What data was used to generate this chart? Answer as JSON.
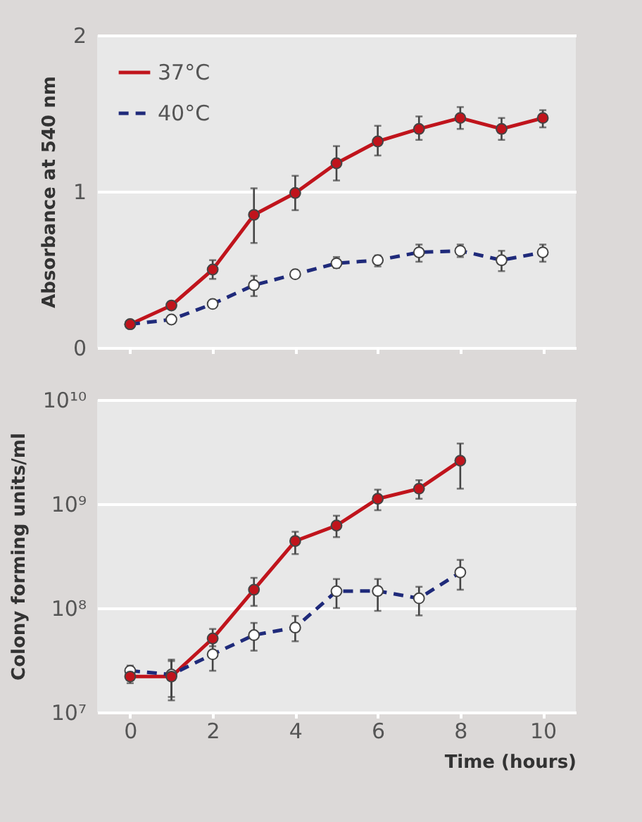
{
  "chart_data": [
    {
      "type": "line",
      "ylabel": "Absorbance at 540 nm",
      "x": [
        0,
        1,
        2,
        3,
        4,
        5,
        6,
        7,
        8,
        9,
        10
      ],
      "xlim": [
        -0.8,
        10.8
      ],
      "xticks": [
        0,
        2,
        4,
        6,
        8,
        10
      ],
      "ylim": [
        0,
        2
      ],
      "yticks": [
        0,
        1,
        2
      ],
      "tick_labels": "y",
      "grid": "y",
      "legend": "top left",
      "marker": "circle",
      "series": [
        {
          "name": "37°C",
          "color": "#c0141c",
          "line_style": "solid",
          "values": [
            0.15,
            0.27,
            0.5,
            0.85,
            0.99,
            1.18,
            1.32,
            1.4,
            1.47,
            1.4,
            1.47
          ],
          "errors": [
            null,
            0.02,
            [
              0.44,
              0.56
            ],
            [
              0.67,
              1.02
            ],
            [
              0.88,
              1.1
            ],
            [
              1.07,
              1.29
            ],
            [
              1.23,
              1.42
            ],
            [
              1.33,
              1.48
            ],
            [
              1.4,
              1.54
            ],
            [
              1.33,
              1.47
            ],
            [
              1.41,
              1.52
            ]
          ]
        },
        {
          "name": "40°C",
          "color": "#1f2a7a",
          "line_style": "dashed",
          "values": [
            0.15,
            0.18,
            0.28,
            0.4,
            0.47,
            0.54,
            0.56,
            0.61,
            0.62,
            0.56,
            0.61
          ],
          "errors": [
            null,
            null,
            null,
            [
              0.33,
              0.46
            ],
            0.02,
            [
              0.51,
              0.58
            ],
            [
              0.52,
              0.59
            ],
            [
              0.55,
              0.66
            ],
            [
              0.58,
              0.66
            ],
            [
              0.49,
              0.62
            ],
            [
              0.55,
              0.66
            ]
          ]
        }
      ]
    },
    {
      "type": "line",
      "ylabel": "Colony forming units/ml",
      "xlabel": "Time (hours)",
      "x": [
        0,
        1,
        2,
        3,
        4,
        5,
        6,
        7,
        8
      ],
      "xlim": [
        -0.8,
        10.8
      ],
      "xticks": [
        0,
        2,
        4,
        6,
        8,
        10
      ],
      "ylim": [
        10000000,
        10000000000
      ],
      "yticks": [
        {
          "value": 10000000,
          "label": "10⁷"
        },
        {
          "value": 100000000,
          "label": "10⁸"
        },
        {
          "value": 1000000000,
          "label": "10⁹"
        },
        {
          "value": 10000000000,
          "label": "10¹⁰"
        }
      ],
      "log": "y",
      "grid": "y",
      "marker": "circle",
      "series": [
        {
          "color": "#c0141c",
          "line_style": "solid",
          "values": [
            22000000,
            22000000,
            51000000,
            150000000,
            440000000,
            620000000,
            1120000000,
            1400000000,
            2600000000
          ],
          "errors": [
            [
              19000000,
              25000000
            ],
            [
              13000000,
              32000000
            ],
            [
              43000000,
              63000000
            ],
            [
              105000000,
              195000000
            ],
            [
              330000000,
              540000000
            ],
            [
              480000000,
              770000000
            ],
            [
              870000000,
              1370000000
            ],
            [
              1120000000,
              1690000000
            ],
            [
              1400000000,
              3800000000
            ]
          ]
        },
        {
          "color": "#1f2a7a",
          "line_style": "dashed",
          "values": [
            25000000,
            23000000,
            36000000,
            55000000,
            65000000,
            145000000,
            146000000,
            124000000,
            220000000
          ],
          "errors": [
            [
              23000000,
              28000000
            ],
            [
              14000000,
              31000000
            ],
            [
              25000000,
              49000000
            ],
            [
              39000000,
              72000000
            ],
            [
              48000000,
              84000000
            ],
            [
              100000000,
              190000000
            ],
            [
              94000000,
              190000000
            ],
            [
              85000000,
              160000000
            ],
            [
              150000000,
              290000000
            ]
          ]
        }
      ]
    }
  ]
}
